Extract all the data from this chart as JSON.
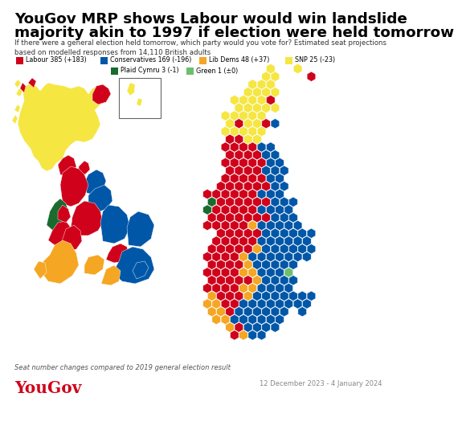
{
  "title_line1": "YouGov MRP shows Labour would win landslide",
  "title_line2": "majority akin to 1997 if election were held tomorrow",
  "subtitle": "If there were a general election held tomorrow, which party would you vote for? Estimated seat projections\nbased on modelled responses from 14,110 British adults",
  "legend": [
    {
      "label": "Labour 385 (+183)",
      "color": "#d0021b"
    },
    {
      "label": "Conservatives 169 (-196)",
      "color": "#0057a8"
    },
    {
      "label": "Lib Dems 48 (+37)",
      "color": "#f5a623"
    },
    {
      "label": "SNP 25 (-23)",
      "color": "#f5e642"
    },
    {
      "label": "Plaid Cymru 3 (-1)",
      "color": "#1a6b2e"
    },
    {
      "label": "Green 1 (±0)",
      "color": "#6dbe6d"
    }
  ],
  "footnote": "Seat number changes compared to 2019 general election result",
  "yougov_label": "YouGov",
  "date_label": "12 December 2023 - 4 January 2024",
  "bg_color": "#ffffff",
  "title_color": "#000000",
  "subtitle_color": "#333333",
  "footnote_color": "#555555",
  "yougov_color": "#d0021b",
  "date_color": "#888888",
  "colors": {
    "labour": "#d0021b",
    "cons": "#0057a8",
    "ld": "#f5a623",
    "snp": "#f5e642",
    "plaid": "#1a6b2e",
    "green": "#6dbe6d"
  }
}
